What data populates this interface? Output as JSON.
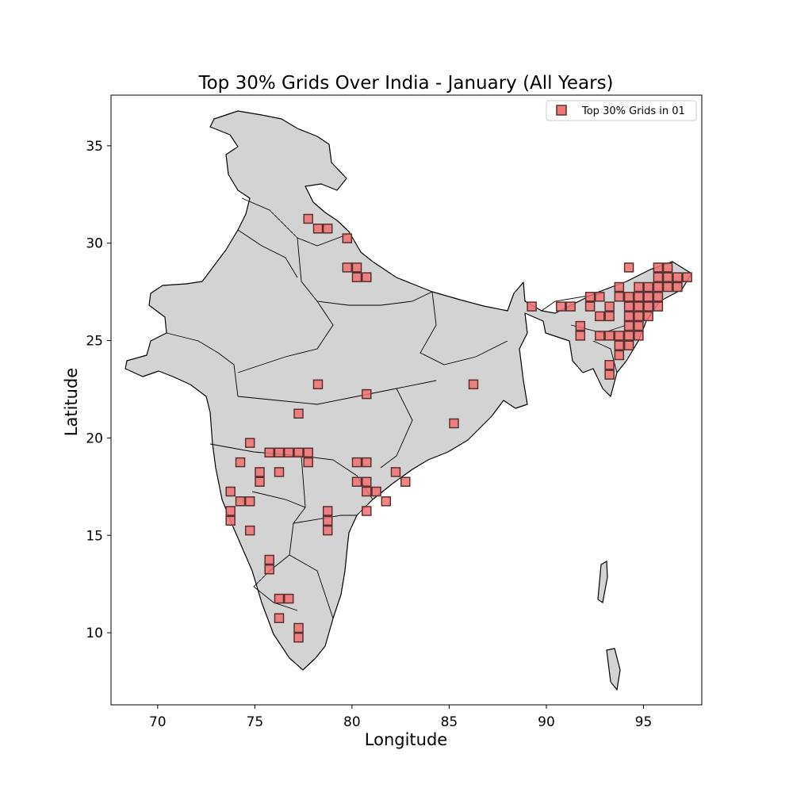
{
  "chart_data": {
    "type": "scatter",
    "title": "Top 30% Grids Over India - January (All Years)",
    "xlabel": "Longitude",
    "ylabel": "Latitude",
    "xlim": [
      67.6,
      98.0
    ],
    "ylim": [
      6.3,
      37.6
    ],
    "xticks": [
      70,
      75,
      80,
      85,
      90,
      95
    ],
    "yticks": [
      10,
      15,
      20,
      25,
      30,
      35
    ],
    "grid": false,
    "legend_position": "top-right",
    "series": [
      {
        "name": "Top 30% Grids in 01",
        "marker": "square",
        "color": "#f07070",
        "edge_color": "#5a3030",
        "points": [
          [
            77.75,
            31.25
          ],
          [
            78.25,
            30.75
          ],
          [
            78.75,
            30.75
          ],
          [
            79.75,
            30.25
          ],
          [
            79.75,
            28.75
          ],
          [
            80.25,
            28.75
          ],
          [
            80.25,
            28.25
          ],
          [
            80.75,
            28.25
          ],
          [
            78.25,
            22.75
          ],
          [
            80.75,
            22.25
          ],
          [
            77.25,
            21.25
          ],
          [
            86.25,
            22.75
          ],
          [
            85.25,
            20.75
          ],
          [
            74.75,
            19.75
          ],
          [
            74.25,
            18.75
          ],
          [
            75.75,
            19.25
          ],
          [
            76.25,
            19.25
          ],
          [
            76.75,
            19.25
          ],
          [
            77.25,
            19.25
          ],
          [
            77.75,
            19.25
          ],
          [
            77.75,
            18.75
          ],
          [
            75.25,
            18.25
          ],
          [
            75.25,
            17.75
          ],
          [
            76.25,
            18.25
          ],
          [
            73.75,
            17.25
          ],
          [
            74.25,
            16.75
          ],
          [
            74.75,
            16.75
          ],
          [
            73.75,
            16.25
          ],
          [
            73.75,
            15.75
          ],
          [
            74.75,
            15.25
          ],
          [
            75.75,
            13.75
          ],
          [
            75.75,
            13.25
          ],
          [
            76.25,
            11.75
          ],
          [
            76.75,
            11.75
          ],
          [
            76.25,
            10.75
          ],
          [
            77.25,
            10.25
          ],
          [
            77.25,
            9.75
          ],
          [
            80.25,
            18.75
          ],
          [
            80.75,
            18.75
          ],
          [
            80.25,
            17.75
          ],
          [
            80.75,
            17.75
          ],
          [
            80.75,
            17.25
          ],
          [
            81.25,
            17.25
          ],
          [
            81.75,
            16.75
          ],
          [
            82.25,
            18.25
          ],
          [
            82.75,
            17.75
          ],
          [
            78.75,
            16.25
          ],
          [
            78.75,
            15.75
          ],
          [
            78.75,
            15.25
          ],
          [
            80.75,
            16.25
          ],
          [
            89.25,
            26.75
          ],
          [
            90.75,
            26.75
          ],
          [
            91.25,
            26.75
          ],
          [
            91.75,
            25.75
          ],
          [
            91.75,
            25.25
          ],
          [
            92.25,
            27.25
          ],
          [
            92.25,
            26.75
          ],
          [
            92.75,
            27.25
          ],
          [
            92.75,
            26.25
          ],
          [
            93.25,
            26.75
          ],
          [
            93.25,
            26.25
          ],
          [
            92.75,
            25.25
          ],
          [
            93.25,
            25.25
          ],
          [
            93.25,
            23.75
          ],
          [
            93.25,
            23.25
          ],
          [
            93.75,
            27.75
          ],
          [
            93.75,
            27.25
          ],
          [
            93.75,
            25.25
          ],
          [
            93.75,
            24.75
          ],
          [
            93.75,
            24.25
          ],
          [
            94.25,
            28.75
          ],
          [
            94.25,
            27.25
          ],
          [
            94.25,
            26.75
          ],
          [
            94.25,
            26.25
          ],
          [
            94.25,
            25.75
          ],
          [
            94.25,
            25.25
          ],
          [
            94.25,
            24.75
          ],
          [
            94.75,
            27.75
          ],
          [
            94.75,
            27.25
          ],
          [
            94.75,
            26.75
          ],
          [
            94.75,
            26.25
          ],
          [
            94.75,
            25.75
          ],
          [
            94.75,
            25.25
          ],
          [
            95.25,
            27.75
          ],
          [
            95.25,
            27.25
          ],
          [
            95.25,
            26.75
          ],
          [
            95.25,
            26.25
          ],
          [
            95.75,
            28.75
          ],
          [
            95.75,
            28.25
          ],
          [
            95.75,
            27.75
          ],
          [
            95.75,
            27.25
          ],
          [
            95.75,
            26.75
          ],
          [
            96.25,
            28.75
          ],
          [
            96.25,
            28.25
          ],
          [
            96.25,
            27.75
          ],
          [
            96.75,
            27.75
          ],
          [
            96.75,
            28.25
          ],
          [
            97.25,
            28.25
          ]
        ]
      }
    ]
  }
}
